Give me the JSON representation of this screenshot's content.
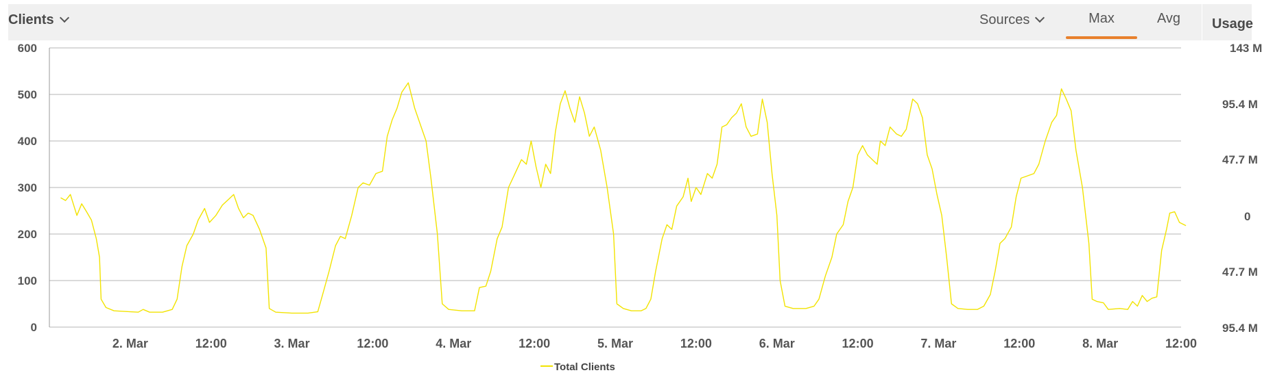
{
  "header": {
    "title": "Clients",
    "sources_label": "Sources",
    "tabs": [
      {
        "label": "Max",
        "active": true
      },
      {
        "label": "Avg",
        "active": false
      }
    ],
    "accent_color": "#e8802c"
  },
  "right_panel": {
    "title": "Usage",
    "ticks": [
      "143 M",
      "95.4 M",
      "47.7 M",
      "0",
      "47.7 M",
      "95.4 M"
    ]
  },
  "chart_data": {
    "type": "line",
    "title": "",
    "xlabel": "",
    "ylabel": "",
    "ylim": [
      0,
      600
    ],
    "yticks": [
      0,
      100,
      200,
      300,
      400,
      500,
      600
    ],
    "xlim": [
      0,
      7.0
    ],
    "xtick_positions": [
      0.5,
      1.0,
      1.5,
      2.0,
      2.5,
      3.0,
      3.5,
      4.0,
      4.5,
      5.0,
      5.5,
      6.0,
      6.5,
      7.0
    ],
    "xtick_labels": [
      "2. Mar",
      "12:00",
      "3. Mar",
      "12:00",
      "4. Mar",
      "12:00",
      "5. Mar",
      "12:00",
      "6. Mar",
      "12:00",
      "7. Mar",
      "12:00",
      "8. Mar",
      "12:00"
    ],
    "grid": true,
    "legend_position": "bottom-center",
    "series": [
      {
        "name": "Total Clients",
        "color": "#f2e300",
        "points": [
          [
            0.07,
            278
          ],
          [
            0.1,
            272
          ],
          [
            0.13,
            285
          ],
          [
            0.17,
            240
          ],
          [
            0.2,
            265
          ],
          [
            0.23,
            248
          ],
          [
            0.26,
            230
          ],
          [
            0.29,
            190
          ],
          [
            0.31,
            150
          ],
          [
            0.32,
            60
          ],
          [
            0.35,
            42
          ],
          [
            0.4,
            35
          ],
          [
            0.5,
            33
          ],
          [
            0.55,
            32
          ],
          [
            0.58,
            38
          ],
          [
            0.62,
            32
          ],
          [
            0.7,
            32
          ],
          [
            0.76,
            38
          ],
          [
            0.79,
            60
          ],
          [
            0.82,
            130
          ],
          [
            0.85,
            175
          ],
          [
            0.89,
            200
          ],
          [
            0.92,
            230
          ],
          [
            0.96,
            255
          ],
          [
            0.99,
            225
          ],
          [
            1.03,
            240
          ],
          [
            1.07,
            262
          ],
          [
            1.11,
            275
          ],
          [
            1.14,
            285
          ],
          [
            1.17,
            255
          ],
          [
            1.2,
            235
          ],
          [
            1.23,
            245
          ],
          [
            1.26,
            240
          ],
          [
            1.3,
            210
          ],
          [
            1.34,
            170
          ],
          [
            1.36,
            40
          ],
          [
            1.4,
            32
          ],
          [
            1.5,
            30
          ],
          [
            1.6,
            30
          ],
          [
            1.66,
            33
          ],
          [
            1.69,
            70
          ],
          [
            1.73,
            120
          ],
          [
            1.77,
            175
          ],
          [
            1.8,
            195
          ],
          [
            1.83,
            190
          ],
          [
            1.87,
            240
          ],
          [
            1.91,
            300
          ],
          [
            1.94,
            310
          ],
          [
            1.98,
            305
          ],
          [
            2.02,
            330
          ],
          [
            2.06,
            335
          ],
          [
            2.09,
            410
          ],
          [
            2.12,
            445
          ],
          [
            2.15,
            470
          ],
          [
            2.18,
            505
          ],
          [
            2.22,
            525
          ],
          [
            2.26,
            470
          ],
          [
            2.3,
            430
          ],
          [
            2.33,
            400
          ],
          [
            2.36,
            320
          ],
          [
            2.4,
            200
          ],
          [
            2.43,
            50
          ],
          [
            2.47,
            38
          ],
          [
            2.55,
            35
          ],
          [
            2.63,
            35
          ],
          [
            2.66,
            85
          ],
          [
            2.7,
            88
          ],
          [
            2.73,
            120
          ],
          [
            2.77,
            190
          ],
          [
            2.8,
            215
          ],
          [
            2.84,
            300
          ],
          [
            2.88,
            330
          ],
          [
            2.92,
            360
          ],
          [
            2.95,
            350
          ],
          [
            2.98,
            400
          ],
          [
            3.01,
            345
          ],
          [
            3.04,
            300
          ],
          [
            3.07,
            350
          ],
          [
            3.1,
            330
          ],
          [
            3.13,
            420
          ],
          [
            3.16,
            480
          ],
          [
            3.19,
            508
          ],
          [
            3.22,
            470
          ],
          [
            3.25,
            440
          ],
          [
            3.28,
            495
          ],
          [
            3.31,
            460
          ],
          [
            3.34,
            410
          ],
          [
            3.37,
            430
          ],
          [
            3.41,
            380
          ],
          [
            3.45,
            300
          ],
          [
            3.49,
            200
          ],
          [
            3.51,
            50
          ],
          [
            3.55,
            40
          ],
          [
            3.6,
            35
          ],
          [
            3.66,
            35
          ],
          [
            3.69,
            40
          ],
          [
            3.72,
            60
          ],
          [
            3.75,
            120
          ],
          [
            3.79,
            190
          ],
          [
            3.82,
            220
          ],
          [
            3.85,
            210
          ],
          [
            3.88,
            260
          ],
          [
            3.92,
            280
          ],
          [
            3.95,
            320
          ],
          [
            3.97,
            270
          ],
          [
            4.0,
            300
          ],
          [
            4.03,
            285
          ],
          [
            4.07,
            330
          ],
          [
            4.1,
            320
          ],
          [
            4.13,
            350
          ],
          [
            4.16,
            430
          ],
          [
            4.19,
            435
          ],
          [
            4.22,
            450
          ],
          [
            4.25,
            460
          ],
          [
            4.28,
            480
          ],
          [
            4.31,
            430
          ],
          [
            4.34,
            410
          ],
          [
            4.38,
            415
          ],
          [
            4.41,
            490
          ],
          [
            4.44,
            440
          ],
          [
            4.47,
            330
          ],
          [
            4.5,
            240
          ],
          [
            4.52,
            100
          ],
          [
            4.55,
            45
          ],
          [
            4.6,
            40
          ],
          [
            4.68,
            40
          ],
          [
            4.73,
            45
          ],
          [
            4.76,
            60
          ],
          [
            4.8,
            110
          ],
          [
            4.84,
            150
          ],
          [
            4.87,
            200
          ],
          [
            4.91,
            220
          ],
          [
            4.94,
            270
          ],
          [
            4.97,
            300
          ],
          [
            5.0,
            370
          ],
          [
            5.03,
            390
          ],
          [
            5.06,
            370
          ],
          [
            5.09,
            360
          ],
          [
            5.12,
            350
          ],
          [
            5.14,
            400
          ],
          [
            5.17,
            390
          ],
          [
            5.2,
            430
          ],
          [
            5.24,
            415
          ],
          [
            5.27,
            410
          ],
          [
            5.3,
            425
          ],
          [
            5.34,
            490
          ],
          [
            5.37,
            480
          ],
          [
            5.4,
            450
          ],
          [
            5.43,
            370
          ],
          [
            5.46,
            340
          ],
          [
            5.49,
            285
          ],
          [
            5.52,
            240
          ],
          [
            5.55,
            150
          ],
          [
            5.58,
            50
          ],
          [
            5.62,
            40
          ],
          [
            5.68,
            38
          ],
          [
            5.74,
            38
          ],
          [
            5.78,
            45
          ],
          [
            5.82,
            70
          ],
          [
            5.85,
            120
          ],
          [
            5.88,
            180
          ],
          [
            5.91,
            190
          ],
          [
            5.95,
            215
          ],
          [
            5.98,
            280
          ],
          [
            6.01,
            320
          ],
          [
            6.05,
            325
          ],
          [
            6.09,
            330
          ],
          [
            6.12,
            350
          ],
          [
            6.16,
            400
          ],
          [
            6.2,
            440
          ],
          [
            6.23,
            455
          ],
          [
            6.26,
            512
          ],
          [
            6.29,
            490
          ],
          [
            6.32,
            465
          ],
          [
            6.35,
            380
          ],
          [
            6.39,
            300
          ],
          [
            6.43,
            180
          ],
          [
            6.45,
            60
          ],
          [
            6.48,
            55
          ],
          [
            6.52,
            52
          ],
          [
            6.55,
            38
          ],
          [
            6.62,
            40
          ],
          [
            6.67,
            38
          ],
          [
            6.7,
            55
          ],
          [
            6.73,
            45
          ],
          [
            6.76,
            68
          ],
          [
            6.79,
            55
          ],
          [
            6.82,
            62
          ],
          [
            6.85,
            65
          ],
          [
            6.88,
            165
          ],
          [
            6.91,
            210
          ],
          [
            6.93,
            245
          ],
          [
            6.96,
            248
          ],
          [
            6.99,
            225
          ],
          [
            7.03,
            218
          ]
        ]
      }
    ]
  }
}
